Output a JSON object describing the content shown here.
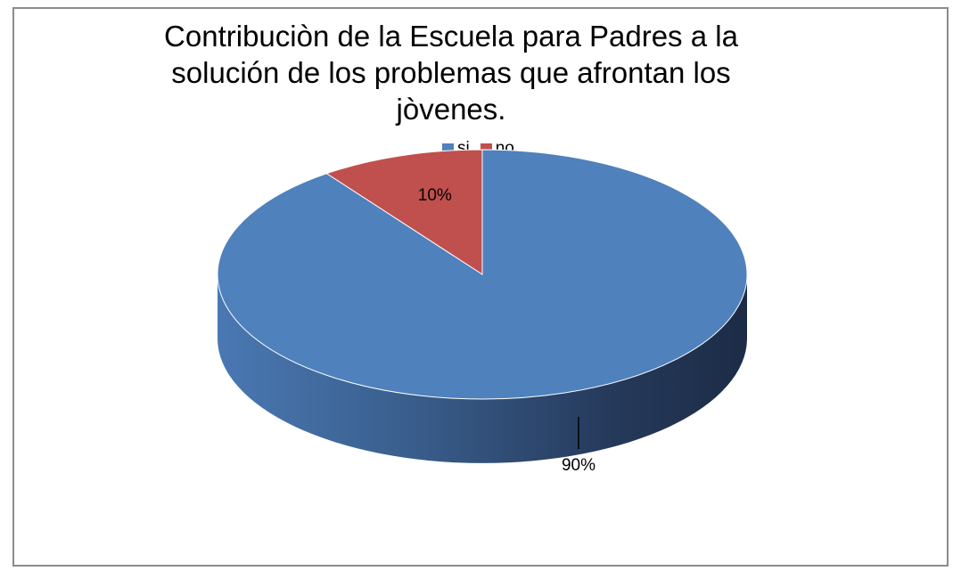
{
  "chart_data": {
    "type": "pie",
    "title": "Contribuciòn de la Escuela para Padres a la solución de los problemas que afrontan los jòvenes.",
    "title_lines": [
      "Contribuciòn de la Escuela para Padres a la",
      "solución de los problemas que afrontan los",
      "jòvenes."
    ],
    "categories": [
      "si",
      "no"
    ],
    "values": [
      90,
      10
    ],
    "data_labels": [
      "90%",
      "10%"
    ],
    "colors": [
      "#4f81bd",
      "#c0504d"
    ],
    "legend_position": "top"
  }
}
